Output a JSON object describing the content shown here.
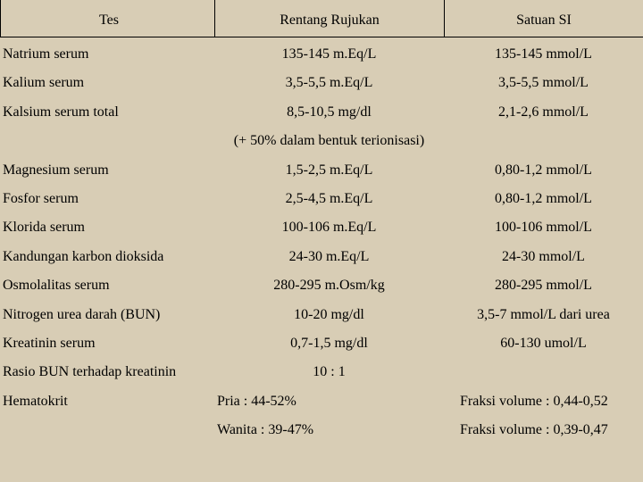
{
  "table": {
    "header": [
      "Tes",
      "Rentang Rujukan",
      "Satuan SI"
    ],
    "rows": [
      {
        "tes": "Natrium serum",
        "rentang": "135-145 m.Eq/L",
        "satuan": "135-145 mmol/L"
      },
      {
        "tes": "Kalium serum",
        "rentang": "3,5-5,5 m.Eq/L",
        "satuan": "3,5-5,5 mmol/L"
      },
      {
        "tes": "Kalsium serum total",
        "rentang": "8,5-10,5 mg/dl",
        "satuan": "2,1-2,6 mmol/L",
        "note": "(+ 50% dalam bentuk terionisasi)"
      },
      {
        "tes": "Magnesium serum",
        "rentang": "1,5-2,5 m.Eq/L",
        "satuan": "0,80-1,2 mmol/L"
      },
      {
        "tes": "Fosfor serum",
        "rentang": "2,5-4,5 m.Eq/L",
        "satuan": "0,80-1,2 mmol/L"
      },
      {
        "tes": "Klorida serum",
        "rentang": "100-106 m.Eq/L",
        "satuan": "100-106 mmol/L"
      },
      {
        "tes": "Kandungan karbon dioksida",
        "rentang": "24-30 m.Eq/L",
        "satuan": "24-30 mmol/L"
      },
      {
        "tes": "Osmolalitas serum",
        "rentang": "280-295 m.Osm/kg",
        "satuan": "280-295 mmol/L"
      },
      {
        "tes": "Nitrogen urea darah (BUN)",
        "rentang": "10-20 mg/dl",
        "satuan": "3,5-7 mmol/L dari urea"
      },
      {
        "tes": "Kreatinin serum",
        "rentang": "0,7-1,5 mg/dl",
        "satuan": "60-130 umol/L"
      },
      {
        "tes": "Rasio BUN terhadap kreatinin",
        "rentang": "10 : 1"
      },
      {
        "tes": "Hematokrit",
        "rentang": [
          "Pria : 44-52%",
          "Wanita : 39-47%"
        ],
        "satuan": [
          "Fraksi volume : 0,44-0,52",
          "Fraksi volume : 0,39-0,47"
        ]
      }
    ]
  }
}
